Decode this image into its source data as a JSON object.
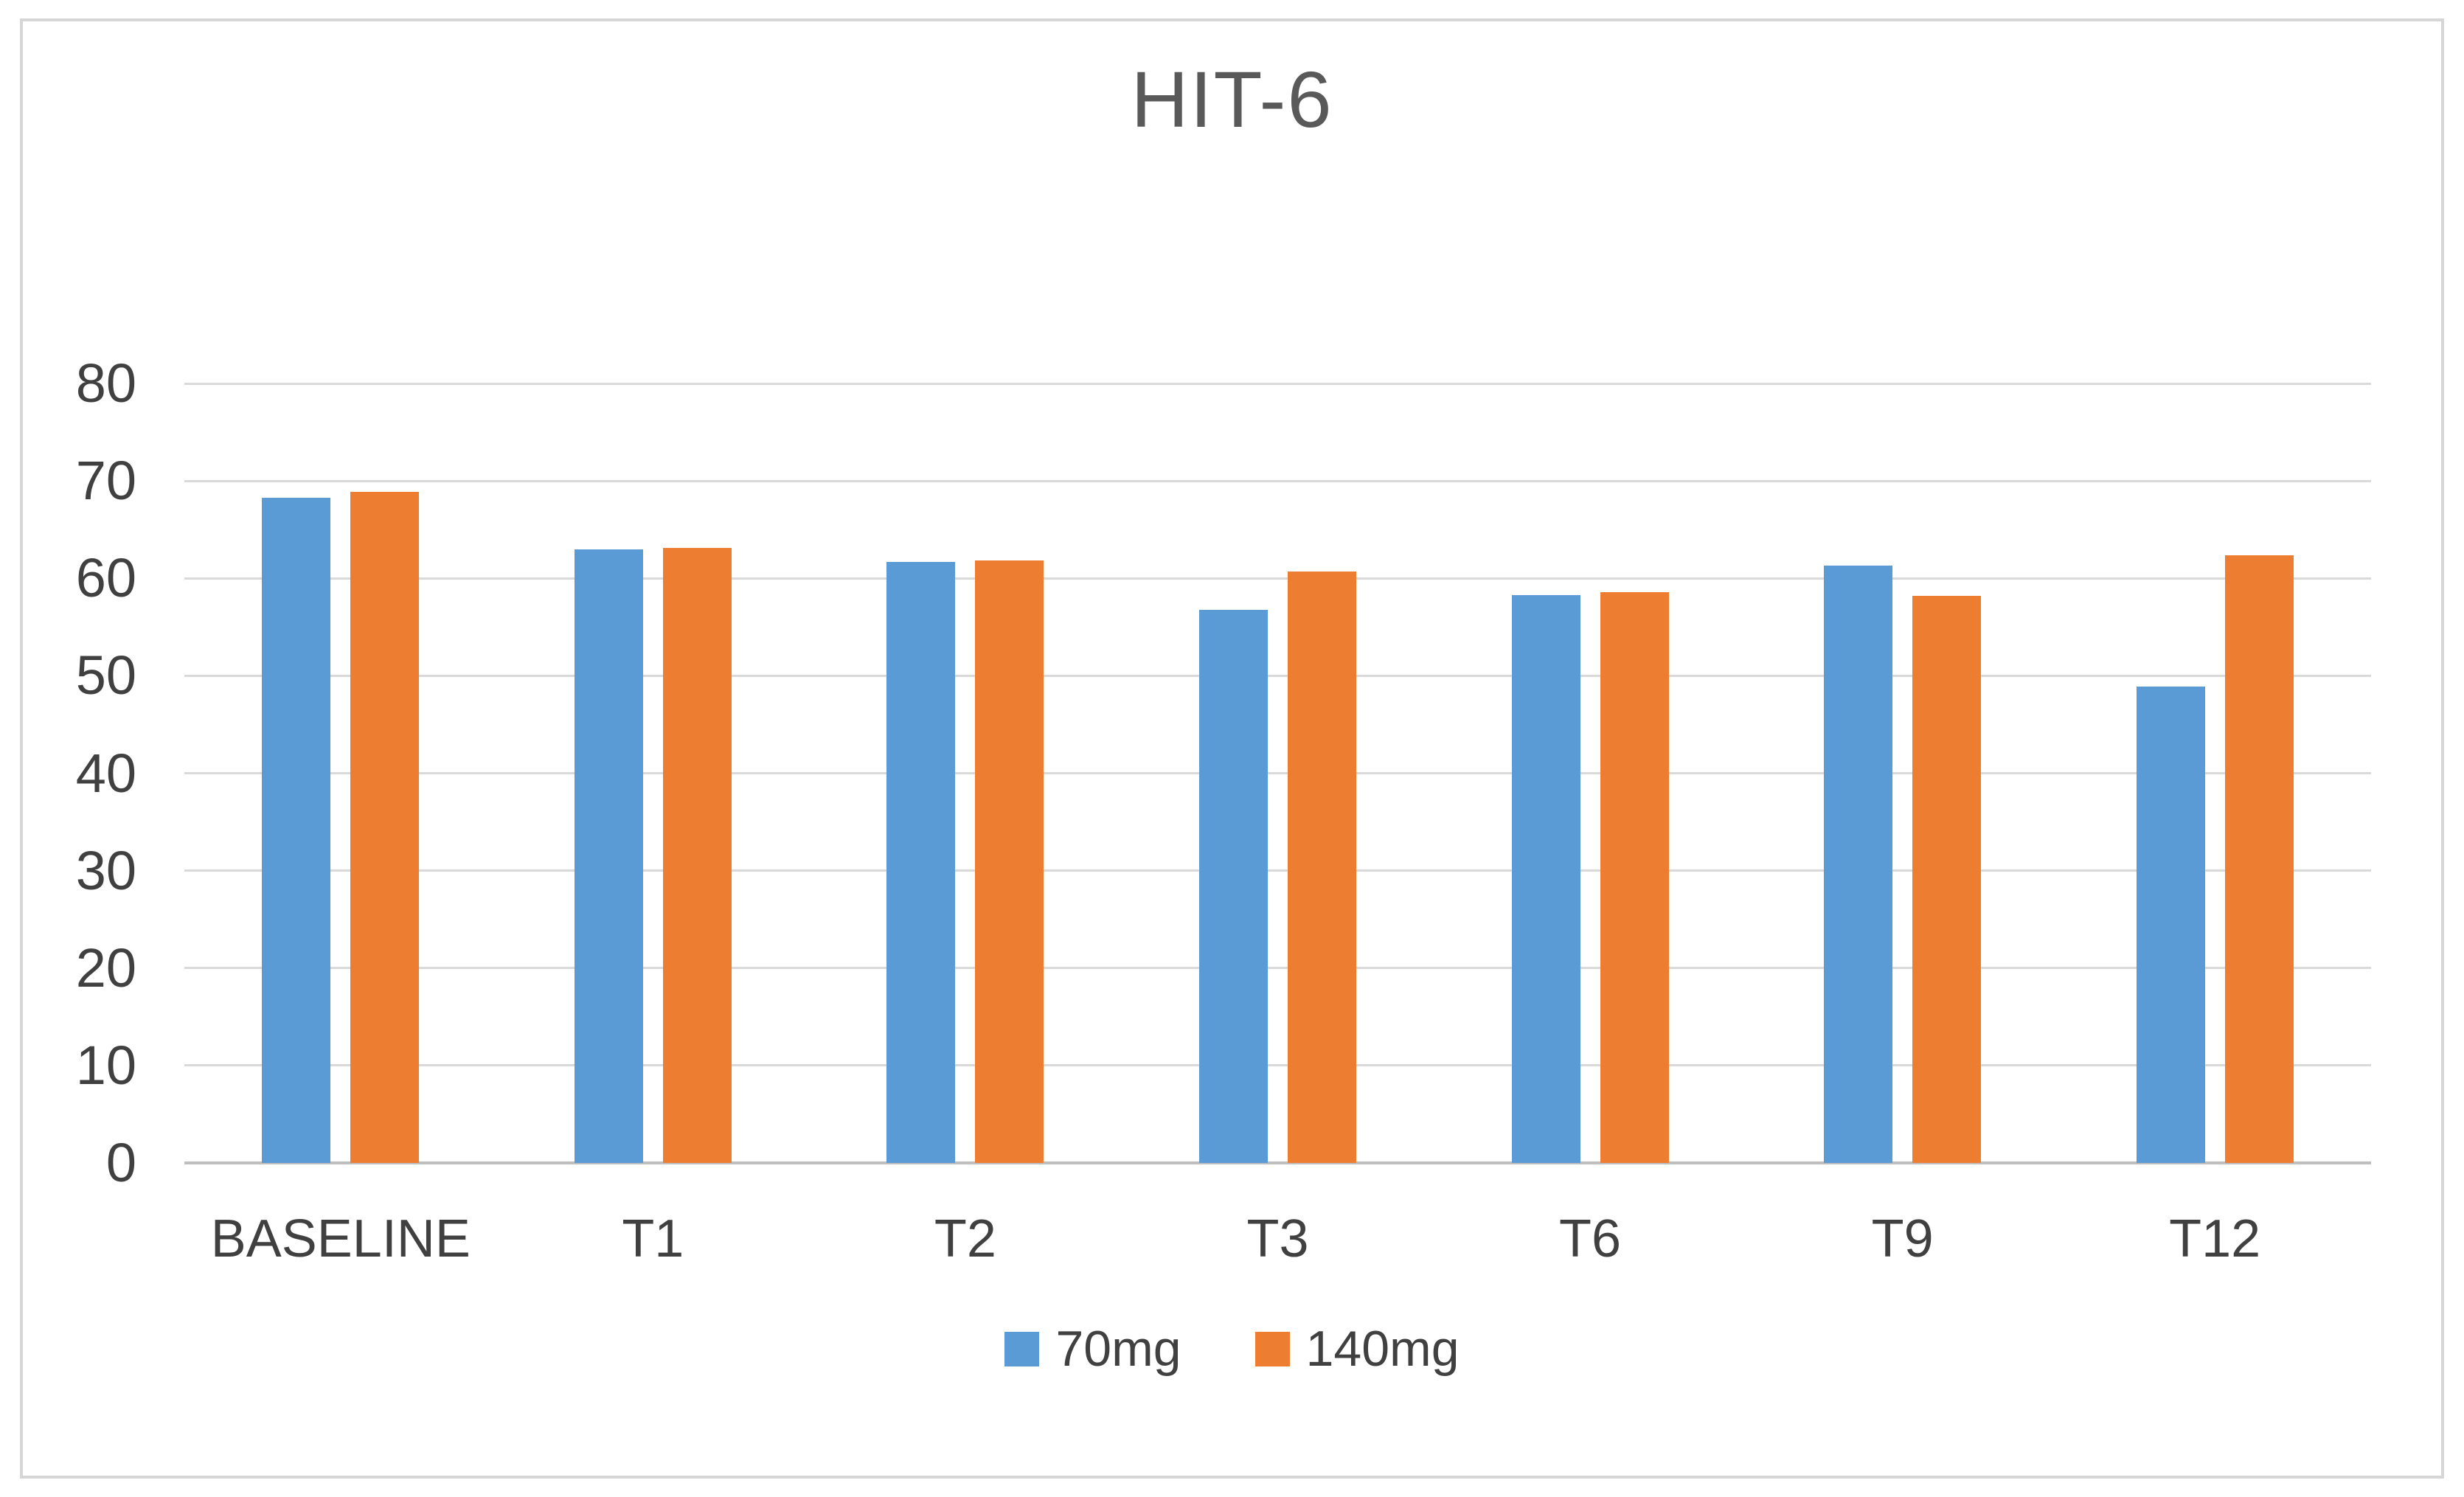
{
  "chart_data": {
    "type": "bar",
    "title": "HIT-6",
    "categories": [
      "BASELINE",
      "T1",
      "T2",
      "T3",
      "T6",
      "T9",
      "T12"
    ],
    "series": [
      {
        "name": "70mg",
        "color": "#5B9BD5",
        "values": [
          68.3,
          63.0,
          61.7,
          56.8,
          58.3,
          61.3,
          48.9
        ]
      },
      {
        "name": "140mg",
        "color": "#ED7D31",
        "values": [
          68.9,
          63.1,
          61.8,
          60.7,
          58.6,
          58.2,
          62.4
        ]
      }
    ],
    "xlabel": "",
    "ylabel": "",
    "ylim": [
      0,
      80
    ],
    "yticks": [
      0,
      10,
      20,
      30,
      40,
      50,
      60,
      70,
      80
    ],
    "grid": true,
    "legend_position": "bottom",
    "colors": {
      "gridline": "#d9d9d9",
      "axis_line": "#bfbfbf",
      "title": "#595959",
      "tick_label": "#404040",
      "frame_border": "#d6d6d6",
      "background": "#ffffff"
    }
  }
}
